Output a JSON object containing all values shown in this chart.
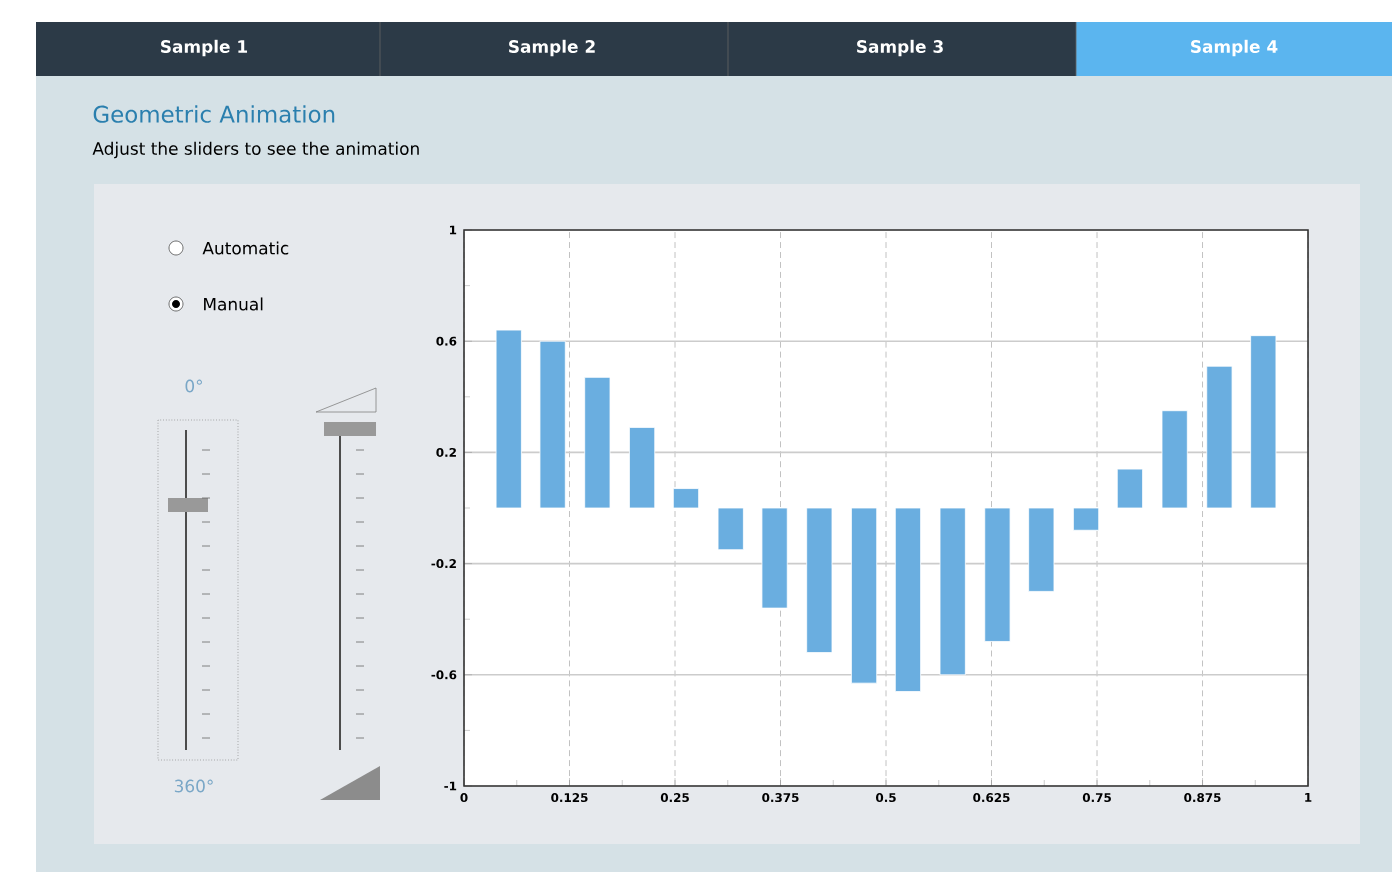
{
  "chart_data": {
    "type": "bar",
    "title": "Geometric Animation",
    "subtitle": "Adjust the sliders to see the animation",
    "annotations": [
      "Sample 1",
      "Sample 2",
      "Sample 3",
      "Sample 4",
      "Automatic",
      "Manual",
      "0°",
      "360°"
    ],
    "x": [
      0.053,
      0.105,
      0.158,
      0.211,
      0.263,
      0.316,
      0.368,
      0.421,
      0.474,
      0.526,
      0.579,
      0.632,
      0.684,
      0.737,
      0.789,
      0.842,
      0.895,
      0.947
    ],
    "values": [
      0.64,
      0.6,
      0.47,
      0.29,
      0.07,
      -0.15,
      -0.36,
      -0.52,
      -0.63,
      -0.66,
      -0.6,
      -0.48,
      -0.3,
      -0.08,
      0.14,
      0.35,
      0.51,
      0.62
    ],
    "color": "#6aaee0",
    "xlim": [
      0,
      1
    ],
    "ylim": [
      -1,
      1
    ],
    "xticks": [
      0,
      {
        "value": 0.0625,
        "label": null
      },
      0.125,
      {
        "value": 0.1875,
        "label": null
      },
      0.25,
      {
        "value": 0.3125,
        "label": null
      },
      0.375,
      {
        "value": 0.4375,
        "label": null
      },
      0.5,
      {
        "value": 0.5625,
        "label": null
      },
      0.625,
      {
        "value": 0.6875,
        "label": null
      },
      0.75,
      {
        "value": 0.8125,
        "label": null
      },
      0.875,
      {
        "value": 0.9375,
        "label": null
      },
      1
    ],
    "yticks": [
      -1,
      {
        "value": -0.8,
        "label": null
      },
      -0.6,
      {
        "value": -0.4,
        "label": null
      },
      -0.2,
      {
        "value": 0,
        "label": null
      },
      0.2,
      {
        "value": 0.4,
        "label": null
      },
      0.6,
      {
        "value": 0.8,
        "label": null
      },
      1
    ],
    "grid": true
  }
}
